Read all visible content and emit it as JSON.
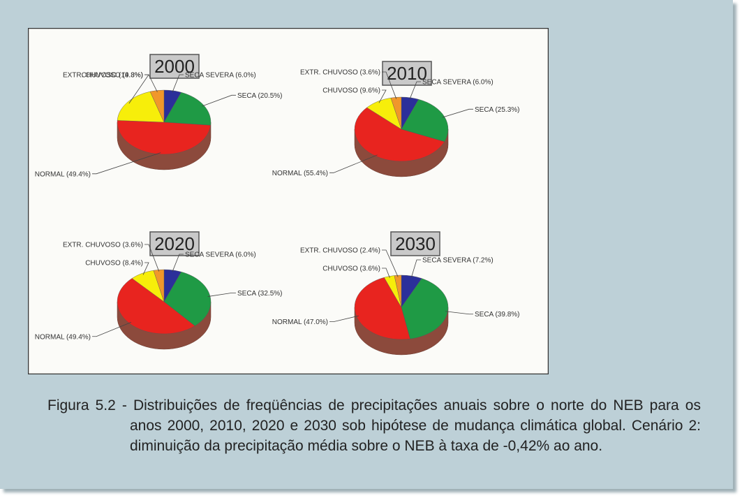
{
  "chart_data": [
    {
      "type": "pie",
      "title": "2000",
      "values": [
        6.0,
        20.5,
        49.4,
        19.3,
        4.8
      ],
      "value_labels": [
        "SECA SEVERA (6.0%)",
        "SECA (20.5%)",
        "NORMAL (49.4%)",
        "CHUVOSO (19.3%)",
        "EXTR. CHUVOSO (4.8%)"
      ],
      "colors": [
        "#2b2f9a",
        "#1f9a45",
        "#e8241f",
        "#f7ee0a",
        "#f0972b"
      ]
    },
    {
      "type": "pie",
      "title": "2010",
      "values": [
        6.0,
        25.3,
        55.4,
        9.6,
        3.6
      ],
      "value_labels": [
        "SECA SEVERA (6.0%)",
        "SECA (25.3%)",
        "NORMAL (55.4%)",
        "CHUVOSO (9.6%)",
        "EXTR. CHUVOSO (3.6%)"
      ],
      "colors": [
        "#2b2f9a",
        "#1f9a45",
        "#e8241f",
        "#f7ee0a",
        "#f0972b"
      ]
    },
    {
      "type": "pie",
      "title": "2020",
      "values": [
        6.0,
        32.5,
        49.4,
        8.4,
        3.6
      ],
      "value_labels": [
        "SECA SEVERA (6.0%)",
        "SECA (32.5%)",
        "NORMAL (49.4%)",
        "CHUVOSO (8.4%)",
        "EXTR. CHUVOSO (3.6%)"
      ],
      "colors": [
        "#2b2f9a",
        "#1f9a45",
        "#e8241f",
        "#f7ee0a",
        "#f0972b"
      ]
    },
    {
      "type": "pie",
      "title": "2030",
      "values": [
        7.2,
        39.8,
        47.0,
        3.6,
        2.4
      ],
      "value_labels": [
        "SECA SEVERA (7.2%)",
        "SECA (39.8%)",
        "NORMAL (47.0%)",
        "CHUVOSO (3.6%)",
        "EXTR. CHUVOSO (2.4%)"
      ],
      "colors": [
        "#2b2f9a",
        "#1f9a45",
        "#e8241f",
        "#f7ee0a",
        "#f0972b"
      ]
    }
  ],
  "caption": "Figura 5.2 - Distribuições de freqüências de precipitações anuais sobre o norte do NEB para os anos 2000, 2010, 2020 e 2030 sob hipótese de mudança climática global. Cenário 2: diminuição da precipitação média sobre o NEB à taxa de -0,42% ao ano."
}
